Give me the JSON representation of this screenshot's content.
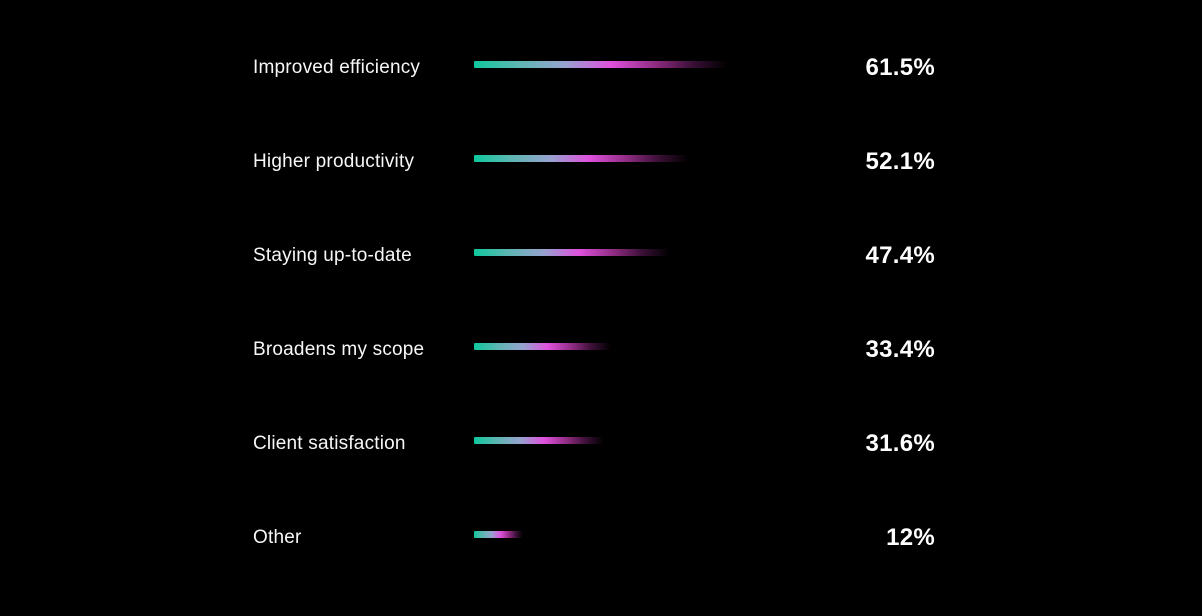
{
  "page": {
    "background": "#000000",
    "text_color": "#ffffff"
  },
  "chart_data": {
    "type": "bar",
    "orientation": "horizontal",
    "title": "",
    "xlabel": "",
    "ylabel": "",
    "categories": [
      "Improved efficiency",
      "Higher productivity",
      "Staying up-to-date",
      "Broadens my scope",
      "Client satisfaction",
      "Other"
    ],
    "values": [
      61.5,
      52.1,
      47.4,
      33.4,
      31.6,
      12
    ],
    "value_labels": [
      "61.5%",
      "52.1%",
      "47.4%",
      "33.4%",
      "31.6%",
      "12%"
    ],
    "xlim": [
      0,
      100
    ],
    "grid": false,
    "legend": false,
    "bar_gradient": [
      "#0fc89d",
      "#5fb5b3",
      "#97a2cf",
      "#df51dd",
      "#8d2b80",
      "#3c1038",
      "rgba(20,3,18,0)"
    ],
    "bar_gradient_stops": [
      0,
      18,
      36,
      54,
      72,
      86,
      100
    ]
  }
}
